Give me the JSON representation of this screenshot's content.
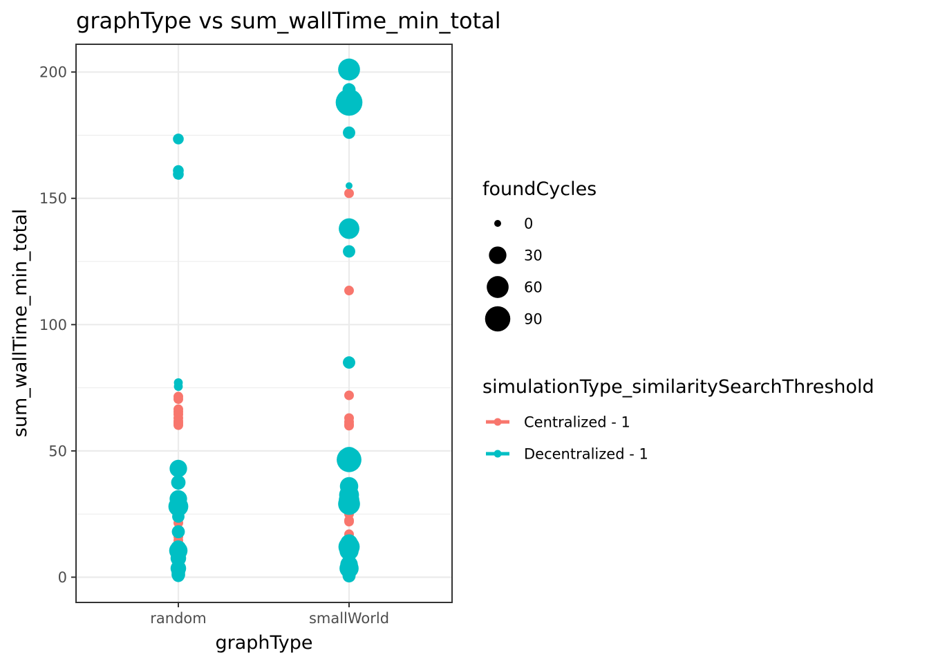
{
  "chart_data": {
    "type": "scatter",
    "title": "graphType  vs  sum_wallTime_min_total",
    "xlabel": "graphType",
    "ylabel": "sum_wallTime_min_total",
    "categories": [
      "random",
      "smallWorld"
    ],
    "ylim": [
      -10,
      211
    ],
    "yticks": [
      0,
      50,
      100,
      150,
      200
    ],
    "grid": true,
    "theme": "bw",
    "legend_position": "right",
    "size_legend": {
      "title": "foundCycles",
      "entries": [
        {
          "label": "0",
          "value": 0
        },
        {
          "label": "30",
          "value": 30
        },
        {
          "label": "60",
          "value": 60
        },
        {
          "label": "90",
          "value": 90
        }
      ]
    },
    "color_legend": {
      "title": "simulationType_similaritySearchThreshold"
    },
    "series": [
      {
        "name": "Centralized - 1",
        "color": "#F8766D",
        "points": [
          {
            "x": "random",
            "y": 71.5,
            "size": 2
          },
          {
            "x": "random",
            "y": 70.5,
            "size": 2
          },
          {
            "x": "random",
            "y": 66.5,
            "size": 2
          },
          {
            "x": "random",
            "y": 65.5,
            "size": 2
          },
          {
            "x": "random",
            "y": 64.5,
            "size": 2
          },
          {
            "x": "random",
            "y": 63.0,
            "size": 2
          },
          {
            "x": "random",
            "y": 61.8,
            "size": 2
          },
          {
            "x": "random",
            "y": 61.0,
            "size": 2
          },
          {
            "x": "random",
            "y": 60.2,
            "size": 2
          },
          {
            "x": "random",
            "y": 27.0,
            "size": 2
          },
          {
            "x": "random",
            "y": 23.5,
            "size": 2
          },
          {
            "x": "random",
            "y": 21.5,
            "size": 2
          },
          {
            "x": "random",
            "y": 16.0,
            "size": 2
          },
          {
            "x": "random",
            "y": 14.5,
            "size": 2
          },
          {
            "x": "random",
            "y": 12.0,
            "size": 2
          },
          {
            "x": "random",
            "y": 6.0,
            "size": 2
          },
          {
            "x": "random",
            "y": 4.0,
            "size": 2
          },
          {
            "x": "random",
            "y": 2.5,
            "size": 2
          },
          {
            "x": "smallWorld",
            "y": 152.0,
            "size": 2
          },
          {
            "x": "smallWorld",
            "y": 113.5,
            "size": 2
          },
          {
            "x": "smallWorld",
            "y": 72.0,
            "size": 2
          },
          {
            "x": "smallWorld",
            "y": 63.0,
            "size": 2
          },
          {
            "x": "smallWorld",
            "y": 61.5,
            "size": 2
          },
          {
            "x": "smallWorld",
            "y": 60.5,
            "size": 2
          },
          {
            "x": "smallWorld",
            "y": 60.0,
            "size": 2
          },
          {
            "x": "smallWorld",
            "y": 32.0,
            "size": 2
          },
          {
            "x": "smallWorld",
            "y": 28.5,
            "size": 2
          },
          {
            "x": "smallWorld",
            "y": 25.0,
            "size": 2
          },
          {
            "x": "smallWorld",
            "y": 22.5,
            "size": 2
          },
          {
            "x": "smallWorld",
            "y": 22.0,
            "size": 2
          },
          {
            "x": "smallWorld",
            "y": 17.0,
            "size": 2
          },
          {
            "x": "smallWorld",
            "y": 15.5,
            "size": 2
          },
          {
            "x": "smallWorld",
            "y": 14.0,
            "size": 2
          },
          {
            "x": "smallWorld",
            "y": 9.5,
            "size": 2
          },
          {
            "x": "smallWorld",
            "y": 8.0,
            "size": 2
          },
          {
            "x": "smallWorld",
            "y": 6.5,
            "size": 2
          },
          {
            "x": "smallWorld",
            "y": 2.0,
            "size": 2
          }
        ]
      },
      {
        "name": "Decentralized - 1",
        "color": "#00BFC4",
        "points": [
          {
            "x": "random",
            "y": 173.5,
            "size": 4
          },
          {
            "x": "random",
            "y": 161.0,
            "size": 4
          },
          {
            "x": "random",
            "y": 159.5,
            "size": 4
          },
          {
            "x": "random",
            "y": 77.0,
            "size": 1
          },
          {
            "x": "random",
            "y": 75.5,
            "size": 1
          },
          {
            "x": "random",
            "y": 43.0,
            "size": 30
          },
          {
            "x": "random",
            "y": 37.5,
            "size": 15
          },
          {
            "x": "random",
            "y": 31.0,
            "size": 30
          },
          {
            "x": "random",
            "y": 29.5,
            "size": 20
          },
          {
            "x": "random",
            "y": 28.0,
            "size": 45
          },
          {
            "x": "random",
            "y": 24.0,
            "size": 8
          },
          {
            "x": "random",
            "y": 18.0,
            "size": 10
          },
          {
            "x": "random",
            "y": 11.5,
            "size": 20
          },
          {
            "x": "random",
            "y": 10.5,
            "size": 35
          },
          {
            "x": "random",
            "y": 9.0,
            "size": 15
          },
          {
            "x": "random",
            "y": 7.5,
            "size": 20
          },
          {
            "x": "random",
            "y": 4.5,
            "size": 10
          },
          {
            "x": "random",
            "y": 3.5,
            "size": 20
          },
          {
            "x": "random",
            "y": 2.0,
            "size": 12
          },
          {
            "x": "random",
            "y": 1.0,
            "size": 12
          },
          {
            "x": "random",
            "y": 0.5,
            "size": 8
          },
          {
            "x": "smallWorld",
            "y": 201.0,
            "size": 60
          },
          {
            "x": "smallWorld",
            "y": 193.0,
            "size": 10
          },
          {
            "x": "smallWorld",
            "y": 188.0,
            "size": 105
          },
          {
            "x": "smallWorld",
            "y": 176.0,
            "size": 8
          },
          {
            "x": "smallWorld",
            "y": 155.0,
            "size": 0
          },
          {
            "x": "smallWorld",
            "y": 138.0,
            "size": 50
          },
          {
            "x": "smallWorld",
            "y": 129.0,
            "size": 8
          },
          {
            "x": "smallWorld",
            "y": 85.0,
            "size": 8
          },
          {
            "x": "smallWorld",
            "y": 47.5,
            "size": 50
          },
          {
            "x": "smallWorld",
            "y": 46.5,
            "size": 85
          },
          {
            "x": "smallWorld",
            "y": 36.0,
            "size": 35
          },
          {
            "x": "smallWorld",
            "y": 32.5,
            "size": 45
          },
          {
            "x": "smallWorld",
            "y": 30.5,
            "size": 50
          },
          {
            "x": "smallWorld",
            "y": 29.0,
            "size": 60
          },
          {
            "x": "smallWorld",
            "y": 13.5,
            "size": 30
          },
          {
            "x": "smallWorld",
            "y": 12.0,
            "size": 55
          },
          {
            "x": "smallWorld",
            "y": 10.5,
            "size": 40
          },
          {
            "x": "smallWorld",
            "y": 5.0,
            "size": 30
          },
          {
            "x": "smallWorld",
            "y": 3.5,
            "size": 40
          },
          {
            "x": "smallWorld",
            "y": 2.0,
            "size": 15
          },
          {
            "x": "smallWorld",
            "y": 0.5,
            "size": 10
          }
        ]
      }
    ]
  }
}
